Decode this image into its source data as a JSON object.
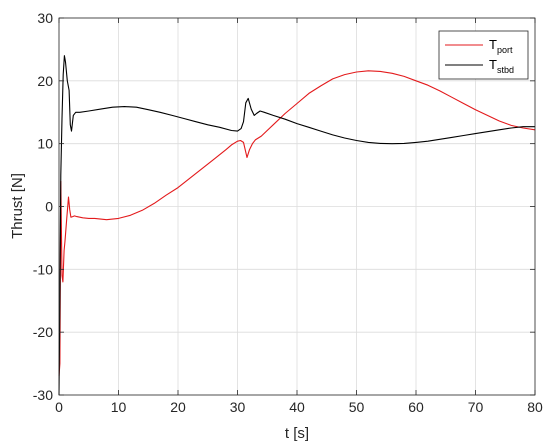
{
  "chart_data": {
    "type": "line",
    "xlabel": "t [s]",
    "ylabel": "Thrust [N]",
    "xlim": [
      0,
      80
    ],
    "ylim": [
      -30,
      30
    ],
    "xticks": [
      "0",
      "10",
      "20",
      "30",
      "40",
      "50",
      "60",
      "70",
      "80"
    ],
    "yticks": [
      "-30",
      "-20",
      "-10",
      "0",
      "10",
      "20",
      "30"
    ],
    "grid": true,
    "legend_position": "top-right",
    "series": [
      {
        "name": "T",
        "subscript": "port",
        "color": "#e31a1c",
        "x": [
          0,
          0.15,
          0.3,
          0.5,
          0.65,
          0.85,
          1.0,
          1.3,
          1.6,
          1.8,
          2.0,
          2.3,
          2.6,
          3,
          4,
          5,
          6,
          8,
          10,
          12,
          14,
          16,
          18,
          20,
          22,
          24,
          26,
          28,
          29,
          30,
          30.5,
          31,
          31.6,
          32,
          32.5,
          33,
          34,
          36,
          38,
          40,
          42,
          44,
          46,
          48,
          50,
          52,
          54,
          56,
          58,
          60,
          62,
          64,
          66,
          68,
          70,
          72,
          74,
          76,
          78,
          80
        ],
        "y": [
          -27,
          -25,
          4,
          -11,
          -12,
          -7,
          -5.5,
          -2,
          1.5,
          -0.5,
          -1.7,
          -1.6,
          -1.5,
          -1.6,
          -1.8,
          -1.9,
          -1.9,
          -2.1,
          -1.9,
          -1.4,
          -0.6,
          0.5,
          1.8,
          3.0,
          4.5,
          6.0,
          7.5,
          9.0,
          9.8,
          10.4,
          10.5,
          10.2,
          7.8,
          9.0,
          10.0,
          10.6,
          11.2,
          13.0,
          14.8,
          16.4,
          18.0,
          19.2,
          20.3,
          21.0,
          21.4,
          21.6,
          21.5,
          21.2,
          20.7,
          20.0,
          19.3,
          18.4,
          17.4,
          16.4,
          15.4,
          14.5,
          13.6,
          12.9,
          12.5,
          12.2
        ]
      },
      {
        "name": "T",
        "subscript": "stbd",
        "color": "#000000",
        "x": [
          0,
          0.15,
          0.3,
          0.5,
          0.7,
          0.9,
          1.1,
          1.4,
          1.7,
          1.9,
          2.1,
          2.4,
          2.8,
          3.5,
          5,
          7,
          9,
          11,
          13,
          15,
          17,
          19,
          21,
          23,
          25,
          27,
          29,
          30,
          30.6,
          31,
          31.4,
          31.8,
          32.3,
          32.8,
          33.2,
          33.8,
          34.5,
          36,
          38,
          40,
          42,
          44,
          46,
          48,
          50,
          52,
          54,
          56,
          58,
          60,
          62,
          64,
          66,
          68,
          70,
          72,
          74,
          76,
          78,
          80
        ],
        "y": [
          -30,
          -15,
          5,
          14,
          21,
          24,
          23,
          20,
          18.5,
          13,
          12,
          14.5,
          15.0,
          15.0,
          15.2,
          15.5,
          15.8,
          15.9,
          15.8,
          15.4,
          15.0,
          14.5,
          14.0,
          13.5,
          13.0,
          12.6,
          12.1,
          12.0,
          12.4,
          13.5,
          16.5,
          17.2,
          15.5,
          14.5,
          14.8,
          15.2,
          15.0,
          14.5,
          13.9,
          13.2,
          12.6,
          12.0,
          11.4,
          10.9,
          10.5,
          10.2,
          10.05,
          10.0,
          10.05,
          10.2,
          10.4,
          10.7,
          11.0,
          11.3,
          11.6,
          11.9,
          12.2,
          12.5,
          12.7,
          12.7
        ]
      }
    ]
  }
}
